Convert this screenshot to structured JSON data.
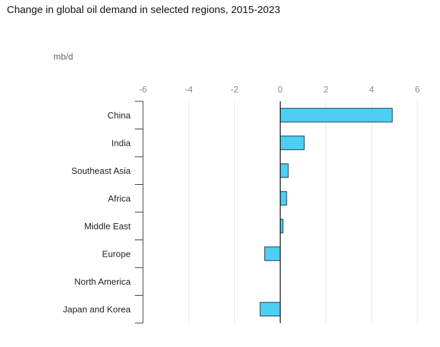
{
  "title": "Change in global oil demand in selected regions, 2015-2023",
  "chart_data": {
    "type": "bar",
    "orientation": "horizontal",
    "unit": "mb/d",
    "categories": [
      "China",
      "India",
      "Southeast Asia",
      "Africa",
      "Middle East",
      "Europe",
      "North America",
      "Japan and Korea"
    ],
    "values": [
      4.9,
      1.05,
      0.35,
      0.28,
      0.12,
      -0.68,
      0.0,
      -0.88
    ],
    "xlim": [
      -6,
      6
    ],
    "xticks": [
      -6,
      -4,
      -2,
      0,
      2,
      4,
      6
    ],
    "grid": true,
    "legend": "none",
    "bar_color": "#4dcff5"
  }
}
